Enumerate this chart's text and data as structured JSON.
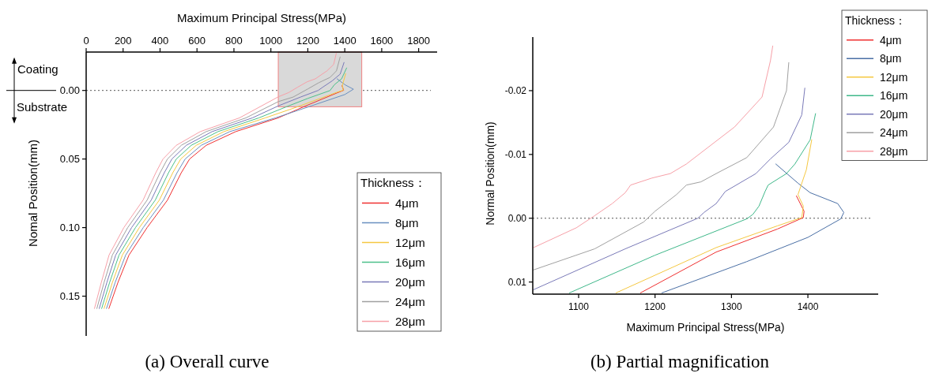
{
  "chart_data": [
    {
      "type": "line",
      "xlabel": "Maximum Principal Stress(MPa)",
      "ylabel": "Nomal Position(mm)",
      "legend_title": "Thickness：",
      "legend": "bottom right",
      "grid": false,
      "line_style": "solid",
      "xlim": [
        0,
        1900
      ],
      "xticks": [
        0,
        200,
        400,
        600,
        800,
        1000,
        1200,
        1400,
        1600,
        1800
      ],
      "ylim": [
        0.179,
        -0.028
      ],
      "yticks": [
        {
          "value": 0,
          "label": "0.00"
        },
        {
          "value": 0.05,
          "label": "0.05"
        },
        {
          "value": 0.1,
          "label": "0.10"
        },
        {
          "value": 0.15,
          "label": "0.15"
        }
      ],
      "ref_lines": [
        {
          "axis": "y",
          "value": 0,
          "line_style": "dotted",
          "color": "#555555"
        }
      ],
      "annotations": [
        "Coating",
        "Substrate",
        "(a) Overall curve"
      ],
      "series": [
        {
          "name": "4μm",
          "color": "#f03030",
          "x": [
            1385,
            1394,
            1360,
            1181,
            1040,
            810,
            650,
            560,
            515,
            440,
            330,
            232,
            172,
            123
          ],
          "values": [
            -0.0035,
            -0.0001,
            0.0017,
            0.0117,
            0.02,
            0.03,
            0.04,
            0.05,
            0.06,
            0.08,
            0.1,
            0.12,
            0.14,
            0.159
          ]
        },
        {
          "name": "8μm",
          "color": "#6a8fc0",
          "x": [
            1358,
            1403,
            1447,
            1400,
            1209,
            1025,
            778,
            623,
            536,
            492,
            418,
            309,
            214,
            157,
            110
          ],
          "values": [
            -0.0085,
            -0.004,
            -0.0009,
            0.003,
            0.0117,
            0.02,
            0.03,
            0.04,
            0.05,
            0.06,
            0.08,
            0.1,
            0.12,
            0.14,
            0.159
          ]
        },
        {
          "name": "12μm",
          "color": "#f5c842",
          "x": [
            1405,
            1387,
            1392,
            1360,
            1149,
            970,
            746,
            596,
            512,
            469,
            396,
            288,
            196,
            142,
            97
          ],
          "values": [
            -0.0123,
            -0.0037,
            -0.0001,
            0.0012,
            0.0117,
            0.02,
            0.03,
            0.04,
            0.05,
            0.06,
            0.08,
            0.1,
            0.12,
            0.14,
            0.159
          ]
        },
        {
          "name": "16μm",
          "color": "#4cc08a",
          "x": [
            1410,
            1383,
            1344,
            1320,
            1200,
            1088,
            935,
            714,
            569,
            488,
            446,
            374,
            267,
            178,
            127,
            84
          ],
          "values": [
            -0.0164,
            -0.0085,
            -0.0042,
            0.0001,
            0.0058,
            0.0117,
            0.02,
            0.03,
            0.04,
            0.05,
            0.06,
            0.08,
            0.1,
            0.12,
            0.14,
            0.159
          ]
        },
        {
          "name": "20μm",
          "color": "#7a7ab8",
          "x": [
            1396,
            1375,
            1332,
            1280,
            1256,
            1161,
            1041,
            900,
            682,
            542,
            464,
            423,
            352,
            246,
            160,
            112,
            71
          ],
          "values": [
            -0.0204,
            -0.0119,
            -0.007,
            -0.0023,
            0,
            0.0048,
            0.0112,
            0.02,
            0.03,
            0.04,
            0.05,
            0.06,
            0.08,
            0.1,
            0.12,
            0.14,
            0.159
          ]
        },
        {
          "name": "24μm",
          "color": "#a0a0a0",
          "x": [
            1375,
            1355,
            1320,
            1260,
            1200,
            1121,
            1041,
            865,
            650,
            515,
            440,
            400,
            330,
            225,
            142,
            97,
            58
          ],
          "values": [
            -0.0244,
            -0.0143,
            -0.0095,
            -0.0057,
            -0.0011,
            0.0048,
            0.0081,
            0.02,
            0.03,
            0.04,
            0.05,
            0.06,
            0.08,
            0.1,
            0.12,
            0.14,
            0.159
          ]
        },
        {
          "name": "28μm",
          "color": "#f7a0a8",
          "x": [
            1354,
            1340,
            1304,
            1241,
            1196,
            1144,
            1097,
            1041,
            830,
            618,
            488,
            416,
            377,
            308,
            204,
            124,
            82,
            45
          ],
          "values": [
            -0.027,
            -0.019,
            -0.0143,
            -0.0085,
            -0.0063,
            -0.0023,
            0.0015,
            0.0046,
            0.02,
            0.03,
            0.04,
            0.05,
            0.06,
            0.08,
            0.1,
            0.12,
            0.14,
            0.159
          ]
        }
      ]
    },
    {
      "type": "line",
      "xlabel": "Maximum Principal Stress(MPa)",
      "ylabel": "Normal Position(mm)",
      "legend_title": "Thickness：",
      "legend": "top right",
      "grid": false,
      "line_style": "solid",
      "xlim": [
        1040,
        1492
      ],
      "xticks": [
        1100,
        1200,
        1300,
        1400
      ],
      "ylim": [
        0.0119,
        -0.0284
      ],
      "yticks": [
        {
          "value": -0.02,
          "label": "-0.02"
        },
        {
          "value": -0.01,
          "label": "-0.01"
        },
        {
          "value": 0,
          "label": "0.00"
        },
        {
          "value": 0.01,
          "label": "0.01"
        }
      ],
      "ref_lines": [
        {
          "axis": "y",
          "value": 0,
          "line_style": "dotted",
          "color": "#555555"
        }
      ],
      "annotations": [
        "(b) Partial magnification"
      ],
      "series": [
        {
          "name": "4μm",
          "color": "#f03030",
          "x": [
            1385,
            1395,
            1394,
            1360,
            1280,
            1181
          ],
          "values": [
            -0.0035,
            -0.0011,
            -0.0001,
            0.0017,
            0.0053,
            0.0117
          ]
        },
        {
          "name": "8μm",
          "color": "#4a6fa5",
          "x": [
            1358,
            1387,
            1403,
            1439,
            1447,
            1443,
            1400,
            1320,
            1209
          ],
          "values": [
            -0.0085,
            -0.0055,
            -0.004,
            -0.0023,
            -0.0009,
            0.0001,
            0.003,
            0.0068,
            0.0117
          ]
        },
        {
          "name": "12μm",
          "color": "#f5c842",
          "x": [
            1405,
            1398,
            1387,
            1394,
            1392,
            1360,
            1280,
            1149
          ],
          "values": [
            -0.0123,
            -0.0076,
            -0.0037,
            -0.0019,
            -0.0001,
            0.0012,
            0.0046,
            0.0117
          ]
        },
        {
          "name": "16μm",
          "color": "#3fb88a",
          "x": [
            1410,
            1403,
            1383,
            1372,
            1348,
            1344,
            1336,
            1328,
            1320,
            1200,
            1088
          ],
          "values": [
            -0.0164,
            -0.0123,
            -0.0085,
            -0.007,
            -0.0052,
            -0.0042,
            -0.0019,
            -0.0006,
            0.0001,
            0.0058,
            0.0117
          ]
        },
        {
          "name": "20μm",
          "color": "#7a7ab8",
          "x": [
            1396,
            1392,
            1375,
            1351,
            1332,
            1292,
            1280,
            1264,
            1256,
            1161,
            1041
          ],
          "values": [
            -0.0204,
            -0.0162,
            -0.0119,
            -0.0093,
            -0.007,
            -0.0042,
            -0.0023,
            -0.0009,
            0,
            0.0048,
            0.0112
          ]
        },
        {
          "name": "24μm",
          "color": "#a0a0a0",
          "x": [
            1375,
            1372,
            1355,
            1320,
            1280,
            1260,
            1241,
            1228,
            1200,
            1185,
            1121,
            1041
          ],
          "values": [
            -0.0244,
            -0.02,
            -0.0143,
            -0.0095,
            -0.007,
            -0.0057,
            -0.0052,
            -0.0037,
            -0.0011,
            0.0006,
            0.0048,
            0.0081
          ]
        },
        {
          "name": "28μm",
          "color": "#f7a0a8",
          "x": [
            1354,
            1351,
            1340,
            1304,
            1241,
            1220,
            1196,
            1168,
            1161,
            1144,
            1121,
            1097,
            1041
          ],
          "values": [
            -0.027,
            -0.0247,
            -0.019,
            -0.0143,
            -0.0085,
            -0.007,
            -0.0063,
            -0.0052,
            -0.004,
            -0.0023,
            -0.0004,
            0.0015,
            0.0046
          ]
        }
      ]
    }
  ]
}
